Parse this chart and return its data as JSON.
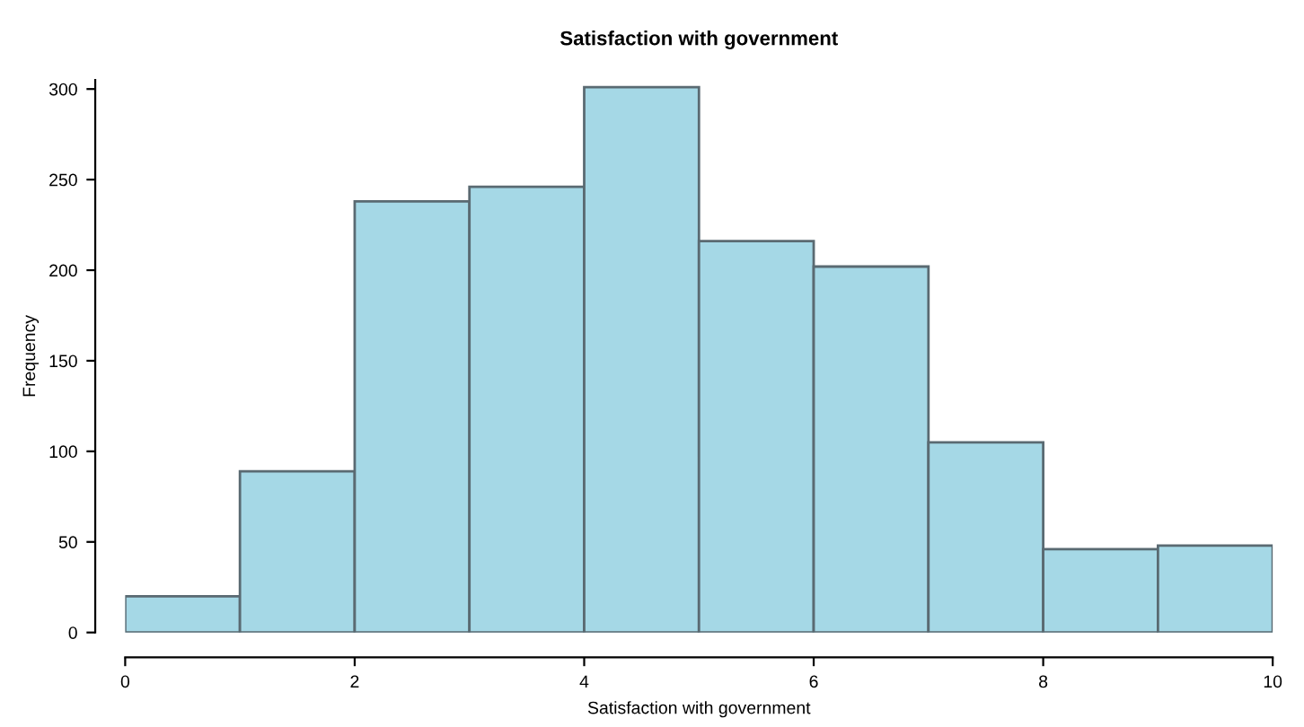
{
  "chart_data": {
    "type": "histogram",
    "title": "Satisfaction with government",
    "xlabel": "Satisfaction with government",
    "ylabel": "Frequency",
    "bins": [
      0,
      1,
      2,
      3,
      4,
      5,
      6,
      7,
      8,
      9,
      10
    ],
    "values": [
      20,
      89,
      238,
      246,
      301,
      216,
      202,
      105,
      46,
      48
    ],
    "color": "#a5d8e6",
    "xlim": [
      0,
      10
    ],
    "ylim": [
      0,
      305
    ],
    "xticks": [
      0,
      2,
      4,
      6,
      8,
      10
    ],
    "yticks": [
      0,
      50,
      100,
      150,
      200,
      250,
      300
    ],
    "grid": false
  }
}
